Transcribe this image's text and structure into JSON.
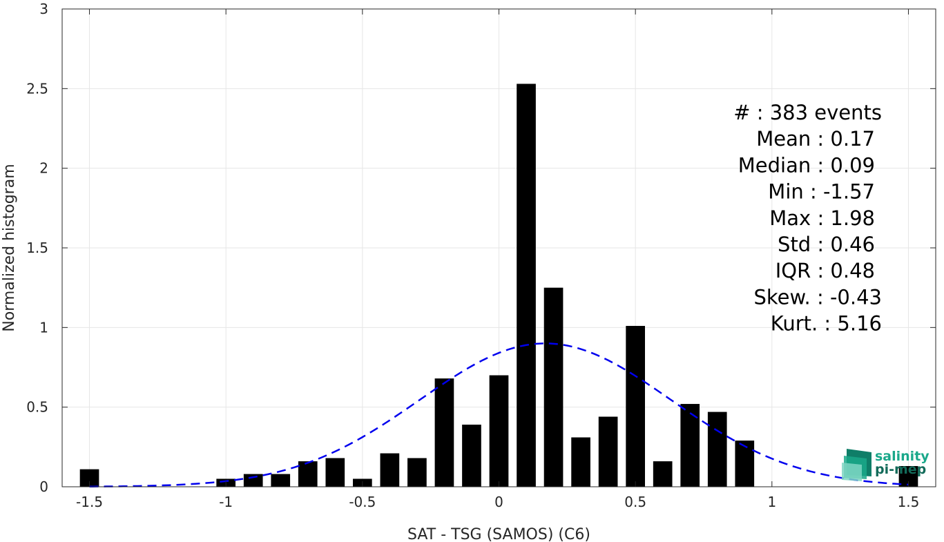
{
  "chart_data": {
    "type": "bar",
    "xlabel": "SAT - TSG (SAMOS) (C6)",
    "ylabel": "Normalized histogram",
    "xlim": [
      -1.6,
      1.6
    ],
    "ylim": [
      0,
      3
    ],
    "grid": true,
    "x_ticks": [
      "-1.5",
      "-1",
      "-0.5",
      "0",
      "0.5",
      "1",
      "1.5"
    ],
    "y_ticks": [
      "0",
      "0.5",
      "1",
      "1.5",
      "2",
      "2.5",
      "3"
    ],
    "bar_width": 0.07,
    "bars": [
      {
        "x": -1.5,
        "y": 0.11
      },
      {
        "x": -1.0,
        "y": 0.05
      },
      {
        "x": -0.9,
        "y": 0.08
      },
      {
        "x": -0.8,
        "y": 0.08
      },
      {
        "x": -0.7,
        "y": 0.16
      },
      {
        "x": -0.6,
        "y": 0.18
      },
      {
        "x": -0.5,
        "y": 0.05
      },
      {
        "x": -0.4,
        "y": 0.21
      },
      {
        "x": -0.3,
        "y": 0.18
      },
      {
        "x": -0.2,
        "y": 0.68
      },
      {
        "x": -0.1,
        "y": 0.39
      },
      {
        "x": 0.0,
        "y": 0.7
      },
      {
        "x": 0.1,
        "y": 2.53
      },
      {
        "x": 0.2,
        "y": 1.25
      },
      {
        "x": 0.3,
        "y": 0.31
      },
      {
        "x": 0.4,
        "y": 0.44
      },
      {
        "x": 0.5,
        "y": 1.01
      },
      {
        "x": 0.6,
        "y": 0.16
      },
      {
        "x": 0.7,
        "y": 0.52
      },
      {
        "x": 0.8,
        "y": 0.47
      },
      {
        "x": 0.9,
        "y": 0.29
      },
      {
        "x": 1.5,
        "y": 0.13
      }
    ],
    "fit_curve": {
      "style": "dashed",
      "color": "#0000ee",
      "mean": 0.17,
      "std": 0.46,
      "peak": 0.9,
      "x_range": [
        -1.5,
        1.5
      ]
    },
    "stats": [
      {
        "label": "#  : 383 events"
      },
      {
        "label": "Mean : 0.17"
      },
      {
        "label": "Median : 0.09"
      },
      {
        "label": "Min : -1.57"
      },
      {
        "label": "Max : 1.98"
      },
      {
        "label": "Std : 0.46"
      },
      {
        "label": "IQR : 0.48"
      },
      {
        "label": "Skew. : -0.43"
      },
      {
        "label": "Kurt. : 5.16"
      }
    ]
  },
  "logo": {
    "line1": "salinity",
    "line2": "pi-mep",
    "color1": "#1aa88a",
    "color2": "#136b5a"
  },
  "colors": {
    "bar": "#000000",
    "grid": "#e6e6e6",
    "axis": "#262626"
  }
}
